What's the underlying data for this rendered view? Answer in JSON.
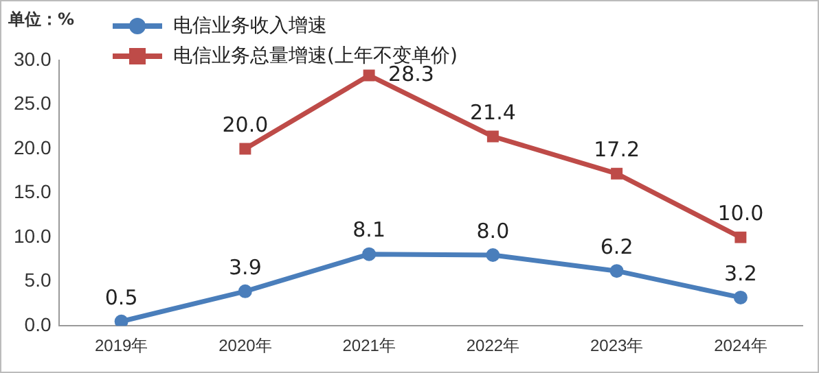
{
  "chart_data": {
    "type": "line",
    "ylabel": "单位：%",
    "categories": [
      "2019年",
      "2020年",
      "2021年",
      "2022年",
      "2023年",
      "2024年"
    ],
    "series": [
      {
        "name": "电信业务收入增速",
        "color": "#4a7ebb",
        "marker": "circle",
        "values": [
          0.5,
          3.9,
          8.1,
          8.0,
          6.2,
          3.2
        ],
        "value_labels": [
          "0.5",
          "3.9",
          "8.1",
          "8.0",
          "6.2",
          "3.2"
        ]
      },
      {
        "name": "电信业务总量增速(上年不变单价)",
        "color": "#be4b48",
        "marker": "square",
        "values": [
          null,
          20.0,
          28.3,
          21.4,
          17.2,
          10.0
        ],
        "value_labels": [
          null,
          "20.0",
          "28.3",
          "21.4",
          "17.2",
          "10.0"
        ]
      }
    ],
    "ylim": [
      0,
      30
    ],
    "yticks": [
      {
        "value": 0,
        "label": "0.0"
      },
      {
        "value": 5,
        "label": "5.0"
      },
      {
        "value": 10,
        "label": "10.0"
      },
      {
        "value": 15,
        "label": "15.0"
      },
      {
        "value": 20,
        "label": "20.0"
      },
      {
        "value": 25,
        "label": "25.0"
      },
      {
        "value": 30,
        "label": "30.0"
      }
    ],
    "grid": false,
    "legend": "top left"
  }
}
